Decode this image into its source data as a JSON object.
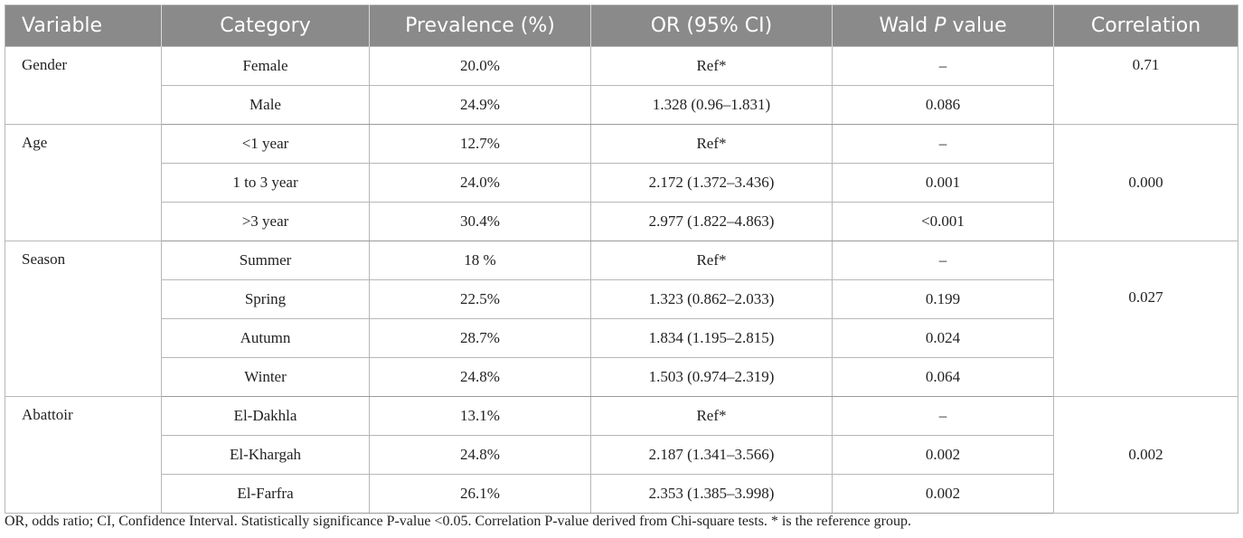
{
  "headers": {
    "variable": "Variable",
    "category": "Category",
    "prevalence": "Prevalence (%)",
    "or": "OR (95% CI)",
    "wald_pre": "Wald ",
    "wald_p": "P",
    "wald_post": " value",
    "correlation": "Correlation"
  },
  "groups": {
    "gender": {
      "variable": "Gender",
      "correlation": "0.71",
      "rows": [
        {
          "category": "Female",
          "prevalence": "20.0%",
          "or": "Ref*",
          "wald": "–"
        },
        {
          "category": "Male",
          "prevalence": "24.9%",
          "or": "1.328 (0.96–1.831)",
          "wald": "0.086"
        }
      ]
    },
    "age": {
      "variable": "Age",
      "correlation": "0.000",
      "rows": [
        {
          "category": "<1 year",
          "prevalence": "12.7%",
          "or": "Ref*",
          "wald": "–"
        },
        {
          "category": "1 to 3 year",
          "prevalence": "24.0%",
          "or": "2.172 (1.372–3.436)",
          "wald": "0.001"
        },
        {
          "category": ">3 year",
          "prevalence": "30.4%",
          "or": "2.977 (1.822–4.863)",
          "wald": "<0.001"
        }
      ]
    },
    "season": {
      "variable": "Season",
      "correlation": "0.027",
      "rows": [
        {
          "category": "Summer",
          "prevalence": "18 %",
          "or": "Ref*",
          "wald": "–"
        },
        {
          "category": "Spring",
          "prevalence": "22.5%",
          "or": "1.323 (0.862–2.033)",
          "wald": "0.199"
        },
        {
          "category": "Autumn",
          "prevalence": "28.7%",
          "or": "1.834 (1.195–2.815)",
          "wald": "0.024"
        },
        {
          "category": "Winter",
          "prevalence": "24.8%",
          "or": "1.503 (0.974–2.319)",
          "wald": "0.064"
        }
      ]
    },
    "abattoir": {
      "variable": "Abattoir",
      "correlation": "0.002",
      "rows": [
        {
          "category": "El-Dakhla",
          "prevalence": "13.1%",
          "or": "Ref*",
          "wald": "–"
        },
        {
          "category": "El-Khargah",
          "prevalence": "24.8%",
          "or": "2.187 (1.341–3.566)",
          "wald": "0.002"
        },
        {
          "category": "El-Farfra",
          "prevalence": "26.1%",
          "or": "2.353 (1.385–3.998)",
          "wald": "0.002"
        }
      ]
    }
  },
  "footnote": "OR, odds ratio; CI, Confidence Interval. Statistically significance P-value <0.05. Correlation P-value derived from Chi-square tests. * is the reference group."
}
